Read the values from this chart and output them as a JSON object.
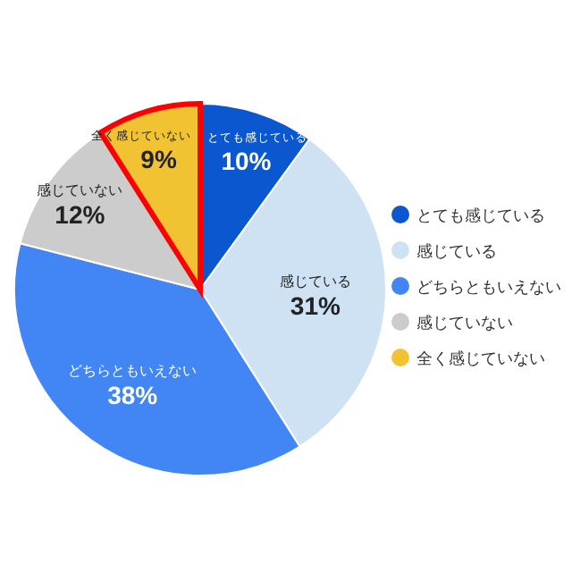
{
  "chart_data": {
    "type": "pie",
    "categories": [
      "とても感じている",
      "感じている",
      "どちらともいえない",
      "感じていない",
      "全く感じていない"
    ],
    "values": [
      10,
      31,
      38,
      12,
      9
    ],
    "colors": [
      "#0b57d0",
      "#cfe2f3",
      "#4285f4",
      "#cccccc",
      "#f1c232"
    ],
    "value_labels": [
      "10%",
      "31%",
      "38%",
      "12%",
      "9%"
    ],
    "legend": "right"
  }
}
